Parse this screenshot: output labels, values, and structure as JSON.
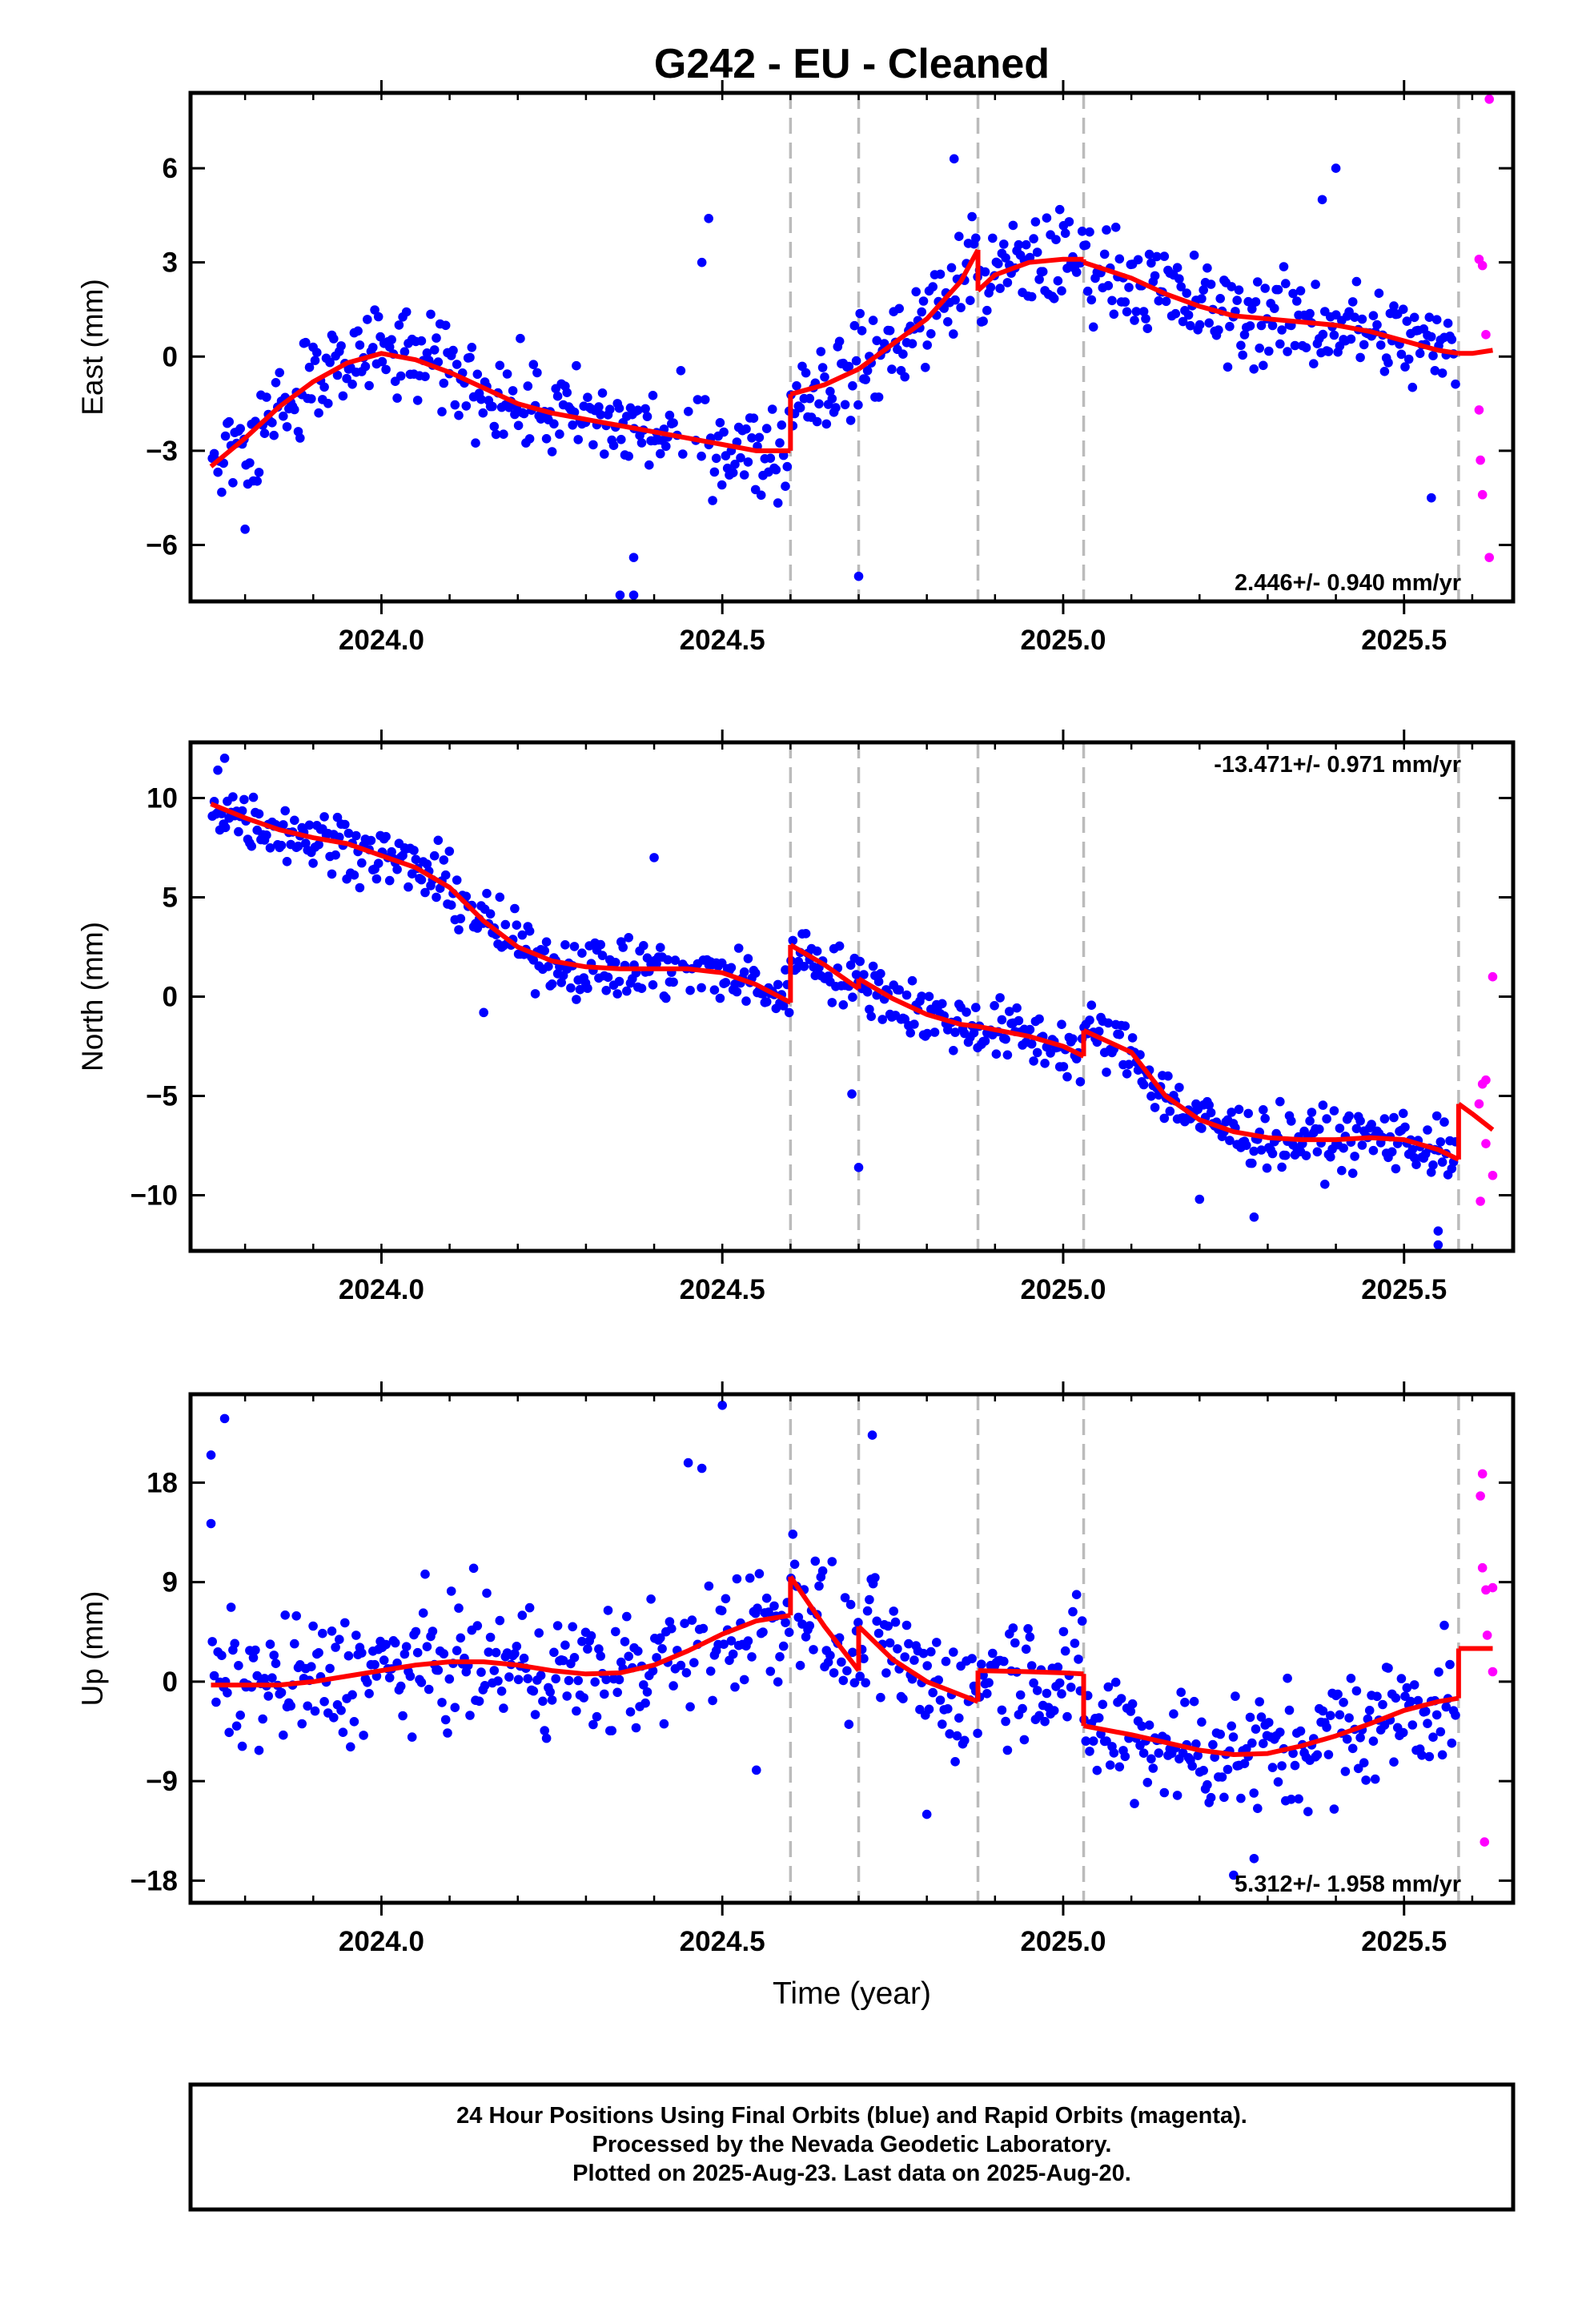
{
  "title": "G242  - EU - Cleaned",
  "x_axis_label": "Time (year)",
  "footer": {
    "line1": "24 Hour Positions Using Final Orbits (blue) and Rapid Orbits (magenta).",
    "line2": "Processed by the Nevada Geodetic Laboratory.",
    "line3": "Plotted on 2025-Aug-23. Last data on 2025-Aug-20."
  },
  "colors": {
    "final_orbits": "#0000ff",
    "rapid_orbits": "#ff00ff",
    "model": "#ff0000",
    "breaks": "#bbbbbb",
    "frame": "#000000"
  },
  "chart_data": [
    {
      "type": "scatter",
      "panel": "east",
      "ylabel": "East (mm)",
      "rate_label": "2.446+/- 0.940 mm/yr",
      "rate_position": "bottom-right",
      "xlim": [
        2023.72,
        2025.66
      ],
      "ylim": [
        -7.8,
        8.4
      ],
      "yticks": [
        6,
        3,
        0,
        -3,
        -6
      ],
      "ytick_labels": [
        "6",
        "3",
        "0",
        "−3",
        "−6"
      ],
      "xticks": [
        2024.0,
        2024.5,
        2025.0,
        2025.5
      ],
      "xtick_labels": [
        "2024.0",
        "2024.5",
        "2025.0",
        "2025.5"
      ],
      "breaks": [
        2024.6,
        2024.7,
        2024.875,
        2025.03,
        2025.58
      ],
      "model_segments": [
        [
          [
            2023.75,
            -3.5
          ],
          [
            2023.8,
            -2.6
          ],
          [
            2023.85,
            -1.6
          ],
          [
            2023.9,
            -0.8
          ],
          [
            2023.95,
            -0.2
          ],
          [
            2024.0,
            0.1
          ],
          [
            2024.05,
            -0.1
          ],
          [
            2024.1,
            -0.5
          ],
          [
            2024.15,
            -1.0
          ],
          [
            2024.2,
            -1.5
          ],
          [
            2024.25,
            -1.8
          ],
          [
            2024.3,
            -2.0
          ],
          [
            2024.35,
            -2.2
          ],
          [
            2024.4,
            -2.4
          ],
          [
            2024.45,
            -2.6
          ],
          [
            2024.5,
            -2.8
          ],
          [
            2024.55,
            -3.0
          ],
          [
            2024.6,
            -3.0
          ]
        ],
        [
          [
            2024.6,
            -1.2
          ],
          [
            2024.65,
            -0.9
          ],
          [
            2024.7,
            -0.4
          ]
        ],
        [
          [
            2024.7,
            -0.4
          ],
          [
            2024.75,
            0.4
          ],
          [
            2024.8,
            1.2
          ],
          [
            2024.85,
            2.4
          ],
          [
            2024.875,
            3.4
          ]
        ],
        [
          [
            2024.875,
            2.1
          ],
          [
            2024.9,
            2.6
          ],
          [
            2024.95,
            3.0
          ],
          [
            2025.0,
            3.1
          ],
          [
            2025.03,
            3.1
          ]
        ],
        [
          [
            2025.03,
            3.0
          ],
          [
            2025.1,
            2.5
          ],
          [
            2025.15,
            2.0
          ],
          [
            2025.2,
            1.6
          ],
          [
            2025.25,
            1.3
          ],
          [
            2025.3,
            1.2
          ],
          [
            2025.35,
            1.1
          ],
          [
            2025.4,
            1.0
          ],
          [
            2025.45,
            0.8
          ],
          [
            2025.5,
            0.5
          ],
          [
            2025.55,
            0.2
          ],
          [
            2025.58,
            0.1
          ]
        ],
        [
          [
            2025.58,
            0.1
          ],
          [
            2025.6,
            0.1
          ],
          [
            2025.63,
            0.2
          ]
        ]
      ],
      "rapid_points": [
        [
          2025.625,
          8.2
        ],
        [
          2025.61,
          3.1
        ],
        [
          2025.615,
          2.9
        ],
        [
          2025.62,
          0.7
        ],
        [
          2025.61,
          -1.7
        ],
        [
          2025.612,
          -3.3
        ],
        [
          2025.615,
          -4.4
        ],
        [
          2025.625,
          -6.4
        ]
      ],
      "outlier_points": [
        [
          2024.48,
          4.4
        ],
        [
          2024.47,
          3.0
        ],
        [
          2024.84,
          6.3
        ],
        [
          2024.7,
          -7.0
        ],
        [
          2024.35,
          -7.6
        ],
        [
          2024.37,
          -7.6
        ],
        [
          2024.37,
          -6.4
        ],
        [
          2025.4,
          6.0
        ],
        [
          2025.38,
          5.0
        ],
        [
          2025.54,
          -4.5
        ],
        [
          2023.8,
          -5.5
        ]
      ]
    },
    {
      "type": "scatter",
      "panel": "north",
      "ylabel": "North (mm)",
      "rate_label": "-13.471+/- 0.971 mm/yr",
      "rate_position": "top-right",
      "xlim": [
        2023.72,
        2025.66
      ],
      "ylim": [
        -12.8,
        12.8
      ],
      "yticks": [
        10,
        5,
        0,
        -5,
        -10
      ],
      "ytick_labels": [
        "10",
        "5",
        "0",
        "−5",
        "−10"
      ],
      "xticks": [
        2024.0,
        2024.5,
        2025.0,
        2025.5
      ],
      "xtick_labels": [
        "2024.0",
        "2024.5",
        "2025.0",
        "2025.5"
      ],
      "breaks": [
        2024.6,
        2024.7,
        2024.875,
        2025.03,
        2025.58
      ],
      "model_segments": [
        [
          [
            2023.75,
            9.7
          ],
          [
            2023.8,
            9.0
          ],
          [
            2023.85,
            8.4
          ],
          [
            2023.9,
            8.0
          ],
          [
            2023.95,
            7.7
          ],
          [
            2024.0,
            7.1
          ],
          [
            2024.05,
            6.5
          ],
          [
            2024.1,
            5.5
          ],
          [
            2024.15,
            3.8
          ],
          [
            2024.2,
            2.5
          ],
          [
            2024.25,
            1.8
          ],
          [
            2024.3,
            1.5
          ],
          [
            2024.35,
            1.4
          ],
          [
            2024.4,
            1.4
          ],
          [
            2024.45,
            1.4
          ],
          [
            2024.5,
            1.2
          ],
          [
            2024.55,
            0.6
          ],
          [
            2024.6,
            -0.3
          ]
        ],
        [
          [
            2024.6,
            2.6
          ],
          [
            2024.65,
            1.6
          ],
          [
            2024.7,
            0.4
          ]
        ],
        [
          [
            2024.7,
            0.9
          ],
          [
            2024.75,
            -0.1
          ],
          [
            2024.8,
            -0.9
          ],
          [
            2024.85,
            -1.4
          ],
          [
            2024.875,
            -1.5
          ]
        ],
        [
          [
            2024.875,
            -1.5
          ],
          [
            2024.95,
            -2.0
          ],
          [
            2025.0,
            -2.5
          ],
          [
            2025.03,
            -3.0
          ]
        ],
        [
          [
            2025.03,
            -1.7
          ],
          [
            2025.1,
            -2.8
          ],
          [
            2025.15,
            -5.0
          ],
          [
            2025.2,
            -6.2
          ],
          [
            2025.25,
            -6.8
          ],
          [
            2025.3,
            -7.1
          ],
          [
            2025.35,
            -7.2
          ],
          [
            2025.4,
            -7.2
          ],
          [
            2025.45,
            -7.1
          ],
          [
            2025.5,
            -7.2
          ],
          [
            2025.55,
            -7.7
          ],
          [
            2025.58,
            -8.2
          ]
        ],
        [
          [
            2025.58,
            -5.4
          ],
          [
            2025.6,
            -5.9
          ],
          [
            2025.63,
            -6.7
          ]
        ]
      ],
      "rapid_points": [
        [
          2025.63,
          1.0
        ],
        [
          2025.62,
          -4.2
        ],
        [
          2025.615,
          -4.4
        ],
        [
          2025.61,
          -5.4
        ],
        [
          2025.62,
          -7.4
        ],
        [
          2025.63,
          -9.0
        ],
        [
          2025.612,
          -10.3
        ]
      ],
      "outlier_points": [
        [
          2023.76,
          11.4
        ],
        [
          2023.77,
          12.0
        ],
        [
          2024.4,
          7.0
        ],
        [
          2024.7,
          -8.6
        ],
        [
          2024.69,
          -4.9
        ],
        [
          2024.15,
          -0.8
        ],
        [
          2025.55,
          -11.8
        ],
        [
          2025.55,
          -12.5
        ],
        [
          2025.28,
          -11.1
        ],
        [
          2025.2,
          -10.2
        ]
      ]
    },
    {
      "type": "scatter",
      "panel": "up",
      "ylabel": "Up (mm)",
      "rate_label": "5.312+/- 1.958 mm/yr",
      "rate_position": "bottom-right",
      "xlim": [
        2023.72,
        2025.66
      ],
      "ylim": [
        -20,
        26
      ],
      "yticks": [
        18,
        9,
        0,
        -9,
        -18
      ],
      "ytick_labels": [
        "18",
        "9",
        "0",
        "−9",
        "−18"
      ],
      "xticks": [
        2024.0,
        2024.5,
        2025.0,
        2025.5
      ],
      "xtick_labels": [
        "2024.0",
        "2024.5",
        "2025.0",
        "2025.5"
      ],
      "breaks": [
        2024.6,
        2024.7,
        2024.875,
        2025.03,
        2025.58
      ],
      "model_segments": [
        [
          [
            2023.75,
            -0.3
          ],
          [
            2023.8,
            -0.3
          ],
          [
            2023.85,
            -0.3
          ],
          [
            2023.9,
            0.0
          ],
          [
            2023.95,
            0.5
          ],
          [
            2024.0,
            1.0
          ],
          [
            2024.05,
            1.5
          ],
          [
            2024.1,
            1.8
          ],
          [
            2024.15,
            1.8
          ],
          [
            2024.2,
            1.5
          ],
          [
            2024.25,
            1.0
          ],
          [
            2024.3,
            0.7
          ],
          [
            2024.35,
            0.8
          ],
          [
            2024.4,
            1.5
          ],
          [
            2024.45,
            2.8
          ],
          [
            2024.5,
            4.3
          ],
          [
            2024.55,
            5.5
          ],
          [
            2024.6,
            6.0
          ]
        ],
        [
          [
            2024.6,
            9.5
          ],
          [
            2024.65,
            5.0
          ],
          [
            2024.7,
            1.0
          ]
        ],
        [
          [
            2024.7,
            5.0
          ],
          [
            2024.75,
            2.0
          ],
          [
            2024.8,
            0.0
          ],
          [
            2024.85,
            -1.2
          ],
          [
            2024.875,
            -1.8
          ]
        ],
        [
          [
            2024.875,
            1.0
          ],
          [
            2024.95,
            0.9
          ],
          [
            2025.0,
            0.8
          ],
          [
            2025.03,
            0.7
          ]
        ],
        [
          [
            2025.03,
            -4.0
          ],
          [
            2025.1,
            -4.8
          ],
          [
            2025.15,
            -5.5
          ],
          [
            2025.2,
            -6.2
          ],
          [
            2025.25,
            -6.6
          ],
          [
            2025.3,
            -6.5
          ],
          [
            2025.35,
            -5.8
          ],
          [
            2025.4,
            -4.9
          ],
          [
            2025.45,
            -3.8
          ],
          [
            2025.5,
            -2.6
          ],
          [
            2025.55,
            -1.8
          ],
          [
            2025.58,
            -1.5
          ]
        ],
        [
          [
            2025.58,
            3.0
          ],
          [
            2025.6,
            3.0
          ],
          [
            2025.63,
            3.0
          ]
        ]
      ],
      "rapid_points": [
        [
          2025.615,
          18.8
        ],
        [
          2025.612,
          16.8
        ],
        [
          2025.615,
          10.3
        ],
        [
          2025.63,
          8.5
        ],
        [
          2025.62,
          8.3
        ],
        [
          2025.622,
          4.2
        ],
        [
          2025.63,
          0.9
        ],
        [
          2025.618,
          -14.5
        ]
      ],
      "outlier_points": [
        [
          2023.75,
          20.5
        ],
        [
          2023.75,
          14.3
        ],
        [
          2023.77,
          23.8
        ],
        [
          2024.5,
          25.0
        ],
        [
          2024.45,
          19.8
        ],
        [
          2024.47,
          19.3
        ],
        [
          2024.72,
          22.3
        ],
        [
          2024.8,
          -12.0
        ],
        [
          2025.25,
          -17.5
        ],
        [
          2025.28,
          -16.0
        ],
        [
          2024.55,
          -8.0
        ]
      ]
    }
  ]
}
